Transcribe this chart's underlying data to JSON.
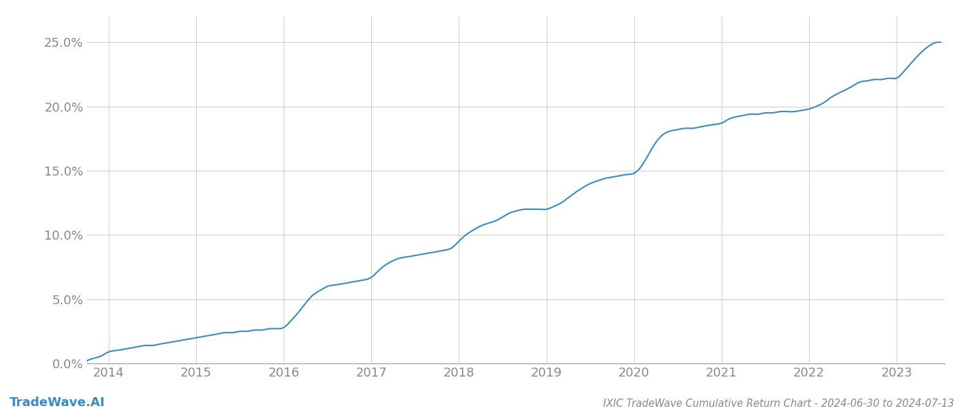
{
  "title": "IXIC TradeWave Cumulative Return Chart - 2024-06-30 to 2024-07-13",
  "watermark": "TradeWave.AI",
  "line_color": "#3a8bbf",
  "background_color": "#ffffff",
  "grid_color": "#cccccc",
  "x_years": [
    2014,
    2015,
    2016,
    2017,
    2018,
    2019,
    2020,
    2021,
    2022,
    2023
  ],
  "x_values": [
    2013.75,
    2013.83,
    2013.92,
    2014.0,
    2014.08,
    2014.17,
    2014.25,
    2014.33,
    2014.42,
    2014.5,
    2014.58,
    2014.67,
    2014.75,
    2014.83,
    2014.92,
    2015.0,
    2015.08,
    2015.17,
    2015.25,
    2015.33,
    2015.42,
    2015.5,
    2015.58,
    2015.67,
    2015.75,
    2015.83,
    2015.92,
    2016.0,
    2016.08,
    2016.17,
    2016.25,
    2016.33,
    2016.42,
    2016.5,
    2016.58,
    2016.67,
    2016.75,
    2016.83,
    2016.92,
    2017.0,
    2017.08,
    2017.17,
    2017.25,
    2017.33,
    2017.42,
    2017.5,
    2017.58,
    2017.67,
    2017.75,
    2017.83,
    2017.92,
    2018.0,
    2018.08,
    2018.17,
    2018.25,
    2018.33,
    2018.42,
    2018.5,
    2018.58,
    2018.67,
    2018.75,
    2018.83,
    2018.92,
    2019.0,
    2019.08,
    2019.17,
    2019.25,
    2019.33,
    2019.42,
    2019.5,
    2019.58,
    2019.67,
    2019.75,
    2019.83,
    2019.92,
    2020.0,
    2020.08,
    2020.17,
    2020.25,
    2020.33,
    2020.42,
    2020.5,
    2020.58,
    2020.67,
    2020.75,
    2020.83,
    2020.92,
    2021.0,
    2021.08,
    2021.17,
    2021.25,
    2021.33,
    2021.42,
    2021.5,
    2021.58,
    2021.67,
    2021.75,
    2021.83,
    2021.92,
    2022.0,
    2022.08,
    2022.17,
    2022.25,
    2022.33,
    2022.42,
    2022.5,
    2022.58,
    2022.67,
    2022.75,
    2022.83,
    2022.92,
    2023.0,
    2023.08,
    2023.17,
    2023.25,
    2023.33,
    2023.42,
    2023.5
  ],
  "y_values": [
    0.002,
    0.004,
    0.006,
    0.009,
    0.01,
    0.011,
    0.012,
    0.013,
    0.014,
    0.014,
    0.015,
    0.016,
    0.017,
    0.018,
    0.019,
    0.02,
    0.021,
    0.022,
    0.023,
    0.024,
    0.024,
    0.025,
    0.025,
    0.026,
    0.026,
    0.027,
    0.027,
    0.028,
    0.033,
    0.04,
    0.047,
    0.053,
    0.057,
    0.06,
    0.061,
    0.062,
    0.063,
    0.064,
    0.065,
    0.067,
    0.072,
    0.077,
    0.08,
    0.082,
    0.083,
    0.084,
    0.085,
    0.086,
    0.087,
    0.088,
    0.09,
    0.095,
    0.1,
    0.104,
    0.107,
    0.109,
    0.111,
    0.114,
    0.117,
    0.119,
    0.12,
    0.12,
    0.12,
    0.12,
    0.122,
    0.125,
    0.129,
    0.133,
    0.137,
    0.14,
    0.142,
    0.144,
    0.145,
    0.146,
    0.147,
    0.148,
    0.153,
    0.163,
    0.172,
    0.178,
    0.181,
    0.182,
    0.183,
    0.183,
    0.184,
    0.185,
    0.186,
    0.187,
    0.19,
    0.192,
    0.193,
    0.194,
    0.194,
    0.195,
    0.195,
    0.196,
    0.196,
    0.196,
    0.197,
    0.198,
    0.2,
    0.203,
    0.207,
    0.21,
    0.213,
    0.216,
    0.219,
    0.22,
    0.221,
    0.221,
    0.222,
    0.222,
    0.227,
    0.234,
    0.24,
    0.245,
    0.249,
    0.25
  ],
  "ylim": [
    0.0,
    0.27
  ],
  "yticks": [
    0.0,
    0.05,
    0.1,
    0.15,
    0.2,
    0.25
  ],
  "xlim": [
    2013.75,
    2023.55
  ],
  "line_width": 1.5,
  "title_fontsize": 10.5,
  "tick_fontsize": 13,
  "watermark_fontsize": 13,
  "tick_color": "#888888",
  "spine_color": "#999999"
}
